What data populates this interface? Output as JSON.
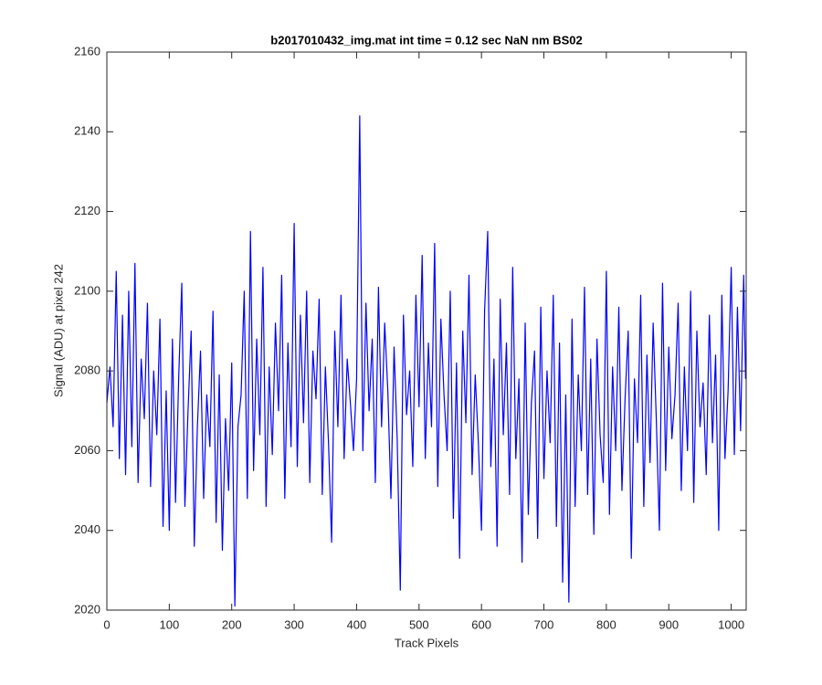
{
  "chart_data": {
    "type": "line",
    "title": "b2017010432_img.mat int time = 0.12 sec  NaN nm BS02",
    "x_label": "Track Pixels",
    "y_label": "Signal (ADU) at pixel 242",
    "x": [
      0,
      5,
      10,
      15,
      20,
      25,
      30,
      35,
      40,
      45,
      50,
      55,
      60,
      65,
      70,
      75,
      80,
      85,
      90,
      95,
      100,
      105,
      110,
      115,
      120,
      125,
      130,
      135,
      140,
      145,
      150,
      155,
      160,
      165,
      170,
      175,
      180,
      185,
      190,
      195,
      200,
      205,
      210,
      215,
      220,
      225,
      230,
      235,
      240,
      245,
      250,
      255,
      260,
      265,
      270,
      275,
      280,
      285,
      290,
      295,
      300,
      305,
      310,
      315,
      320,
      325,
      330,
      335,
      340,
      345,
      350,
      355,
      360,
      365,
      370,
      375,
      380,
      385,
      390,
      395,
      400,
      405,
      410,
      415,
      420,
      425,
      430,
      435,
      440,
      445,
      450,
      455,
      460,
      465,
      470,
      475,
      480,
      485,
      490,
      495,
      500,
      505,
      510,
      515,
      520,
      525,
      530,
      535,
      540,
      545,
      550,
      555,
      560,
      565,
      570,
      575,
      580,
      585,
      590,
      595,
      600,
      605,
      610,
      615,
      620,
      625,
      630,
      635,
      640,
      645,
      650,
      655,
      660,
      665,
      670,
      675,
      680,
      685,
      690,
      695,
      700,
      705,
      710,
      715,
      720,
      725,
      730,
      735,
      740,
      745,
      750,
      755,
      760,
      765,
      770,
      775,
      780,
      785,
      790,
      795,
      800,
      805,
      810,
      815,
      820,
      825,
      830,
      835,
      840,
      845,
      850,
      855,
      860,
      865,
      870,
      875,
      880,
      885,
      890,
      895,
      900,
      905,
      910,
      915,
      920,
      925,
      930,
      935,
      940,
      945,
      950,
      955,
      960,
      965,
      970,
      975,
      980,
      985,
      990,
      995,
      1000,
      1005,
      1010,
      1015,
      1020,
      1023
    ],
    "series": [
      {
        "name": "signal",
        "color": "#0000ff",
        "values": [
          2072,
          2081,
          2066,
          2105,
          2058,
          2094,
          2054,
          2100,
          2061,
          2107,
          2052,
          2083,
          2068,
          2097,
          2051,
          2080,
          2064,
          2093,
          2041,
          2075,
          2040,
          2088,
          2047,
          2078,
          2102,
          2046,
          2070,
          2090,
          2036,
          2066,
          2085,
          2048,
          2074,
          2061,
          2095,
          2042,
          2079,
          2035,
          2068,
          2050,
          2082,
          2021,
          2066,
          2074,
          2100,
          2048,
          2115,
          2055,
          2088,
          2064,
          2106,
          2046,
          2081,
          2059,
          2092,
          2070,
          2104,
          2048,
          2087,
          2061,
          2117,
          2056,
          2094,
          2067,
          2100,
          2052,
          2085,
          2073,
          2098,
          2049,
          2081,
          2062,
          2037,
          2090,
          2066,
          2099,
          2058,
          2083,
          2072,
          2060,
          2078,
          2144,
          2060,
          2097,
          2070,
          2088,
          2052,
          2101,
          2066,
          2092,
          2075,
          2048,
          2086,
          2063,
          2025,
          2094,
          2069,
          2080,
          2056,
          2099,
          2071,
          2109,
          2058,
          2087,
          2066,
          2112,
          2051,
          2093,
          2074,
          2060,
          2100,
          2043,
          2082,
          2033,
          2090,
          2067,
          2104,
          2054,
          2079,
          2062,
          2040,
          2095,
          2115,
          2056,
          2083,
          2036,
          2098,
          2064,
          2087,
          2049,
          2106,
          2058,
          2078,
          2032,
          2092,
          2044,
          2072,
          2085,
          2038,
          2096,
          2053,
          2080,
          2062,
          2099,
          2041,
          2087,
          2027,
          2074,
          2022,
          2093,
          2046,
          2079,
          2060,
          2101,
          2049,
          2083,
          2039,
          2088,
          2064,
          2052,
          2105,
          2044,
          2081,
          2060,
          2096,
          2050,
          2073,
          2090,
          2033,
          2078,
          2062,
          2099,
          2046,
          2084,
          2057,
          2092,
          2068,
          2040,
          2102,
          2055,
          2086,
          2063,
          2074,
          2097,
          2050,
          2081,
          2060,
          2100,
          2047,
          2090,
          2066,
          2077,
          2054,
          2094,
          2062,
          2084,
          2040,
          2099,
          2058,
          2075,
          2106,
          2059,
          2096,
          2065,
          2104,
          2078
        ]
      }
    ],
    "xlim": [
      0,
      1024
    ],
    "ylim": [
      2020,
      2160
    ],
    "xticks": [
      0,
      100,
      200,
      300,
      400,
      500,
      600,
      700,
      800,
      900,
      1000
    ],
    "yticks": [
      2020,
      2040,
      2060,
      2080,
      2100,
      2120,
      2140,
      2160
    ],
    "grid": false
  }
}
